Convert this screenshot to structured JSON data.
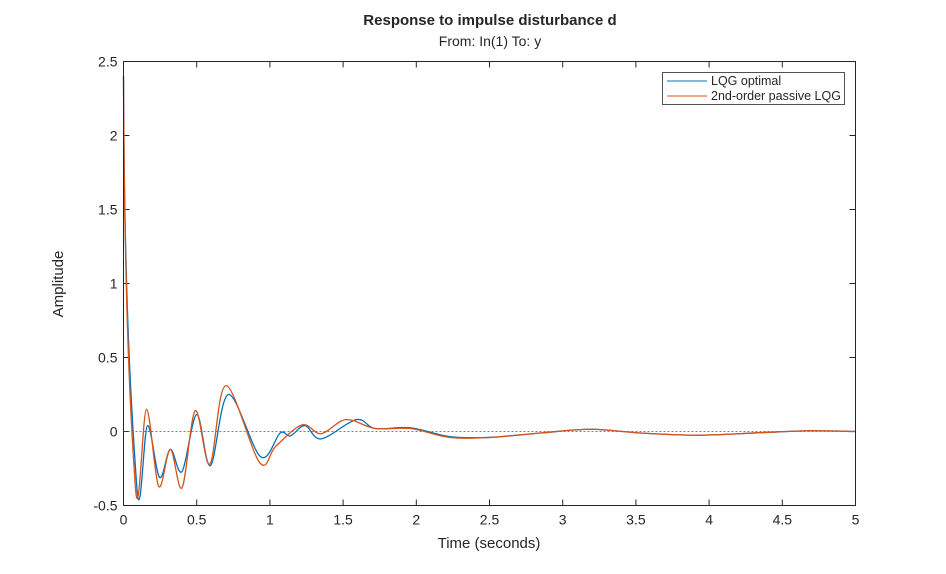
{
  "chart_data": {
    "type": "line",
    "title": "Response to impulse disturbance d",
    "subtitle": "From: In(1)  To: y",
    "xlabel": "Time (seconds)",
    "ylabel": "Amplitude",
    "xlim": [
      0,
      5
    ],
    "ylim": [
      -0.5,
      2.5
    ],
    "xticks": [
      "0",
      "0.5",
      "1",
      "1.5",
      "2",
      "2.5",
      "3",
      "3.5",
      "4",
      "4.5",
      "5"
    ],
    "xtick_values": [
      0,
      0.5,
      1,
      1.5,
      2,
      2.5,
      3,
      3.5,
      4,
      4.5,
      5
    ],
    "yticks": [
      "-0.5",
      "0",
      "0.5",
      "1",
      "1.5",
      "2",
      "2.5"
    ],
    "ytick_values": [
      -0.5,
      0,
      0.5,
      1,
      1.5,
      2,
      2.5
    ],
    "legend_position": "top-right",
    "reference_line": 0,
    "series": [
      {
        "name": "LQG optimal",
        "color": "#0072BD",
        "x": [
          0,
          0.089,
          0.164,
          0.246,
          0.32,
          0.4,
          0.5,
          0.594,
          0.717,
          0.936,
          1.07,
          1.14,
          1.24,
          1.35,
          1.59,
          1.72,
          1.96,
          2.23,
          2.5,
          2.85,
          3.19,
          3.53,
          3.94,
          4.35,
          4.69,
          5.0
        ],
        "y": [
          2.4,
          -0.35,
          0.04,
          -0.31,
          -0.12,
          -0.27,
          0.115,
          -0.23,
          0.25,
          -0.17,
          -0.01,
          -0.03,
          0.04,
          -0.05,
          0.08,
          0.02,
          0.025,
          -0.035,
          -0.04,
          -0.01,
          0.015,
          -0.01,
          -0.025,
          -0.008,
          0.005,
          0.0
        ]
      },
      {
        "name": "2nd-order passive LQG",
        "color": "#D95319",
        "x": [
          0,
          0.08,
          0.157,
          0.24,
          0.32,
          0.4,
          0.49,
          0.59,
          0.7,
          0.93,
          1.04,
          1.22,
          1.35,
          1.52,
          1.72,
          1.96,
          2.23,
          2.5,
          2.85,
          3.19,
          3.53,
          3.94,
          4.35,
          4.69,
          5.0
        ],
        "y": [
          2.4,
          -0.36,
          0.15,
          -0.37,
          -0.12,
          -0.38,
          0.14,
          -0.22,
          0.31,
          -0.21,
          -0.1,
          0.045,
          -0.015,
          0.08,
          0.02,
          0.02,
          -0.04,
          -0.04,
          -0.01,
          0.015,
          -0.01,
          -0.025,
          -0.008,
          0.005,
          0.0
        ]
      }
    ]
  }
}
